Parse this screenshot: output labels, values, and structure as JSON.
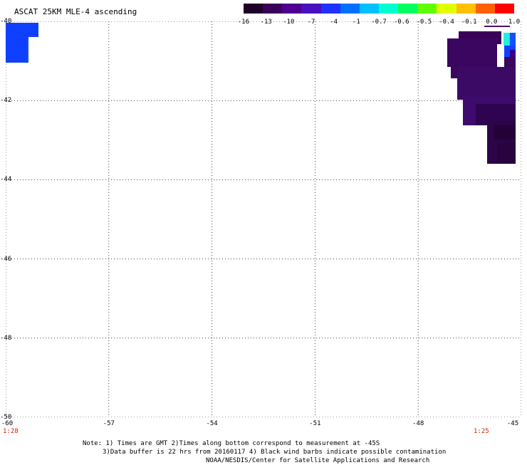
{
  "title": "ASCAT 25KM MLE-4 ascending",
  "colorbar": {
    "labels": [
      "-16",
      "-13",
      "-10",
      "-7",
      "-4",
      "-1",
      "-0.7",
      "-0.6",
      "-0.5",
      "-0.4",
      "-0.1",
      "0.0",
      "1.0"
    ],
    "colors": [
      "#20002a",
      "#3a005a",
      "#500090",
      "#4a10c0",
      "#2030ff",
      "#0070ff",
      "#00c0ff",
      "#00ffd0",
      "#00ff60",
      "#60ff00",
      "#e0ff00",
      "#ffc000",
      "#ff6000",
      "#ff0000"
    ]
  },
  "map": {
    "lon_range": [
      -60,
      -45
    ],
    "lat_range": [
      -50,
      -40
    ],
    "lat_ticks": [
      "-40",
      "-42",
      "-44",
      "-46",
      "-48",
      "-50"
    ],
    "lon_ticks": [
      "-60",
      "-57",
      "-54",
      "-51",
      "-48",
      "-45"
    ],
    "time_left": "1:28",
    "time_right": "1:25"
  },
  "notes": {
    "line1": "Note: 1) Times are GMT 2)Times along bottom correspond to measurement at -45S",
    "line2": "3)Data buffer is 22 hrs from 20160117 4) Black wind barbs indicate possible contamination",
    "line3": "NOAA/NESDIS/Center for Satellite Applications and Research"
  }
}
